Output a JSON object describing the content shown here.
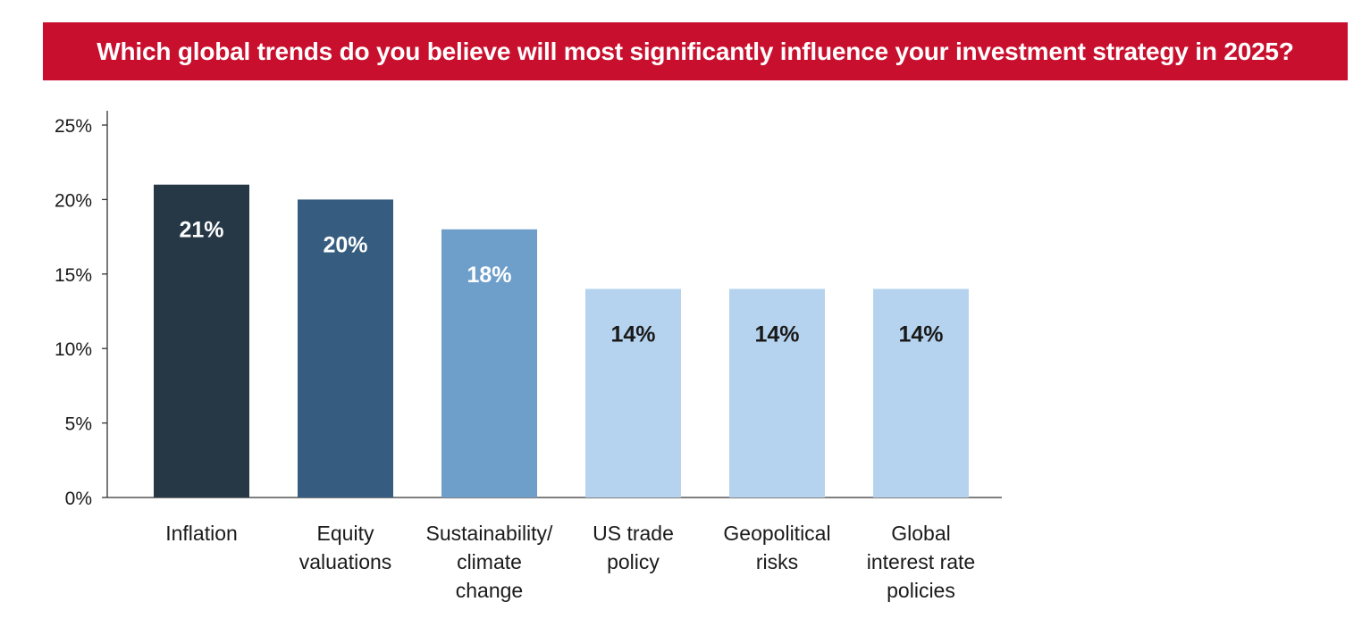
{
  "chart_data": {
    "type": "bar",
    "title": "Which global trends do you believe will most significantly influence your investment strategy in 2025?",
    "categories": [
      [
        "Inflation"
      ],
      [
        "Equity",
        "valuations"
      ],
      [
        "Sustainability/",
        "climate",
        "change"
      ],
      [
        "US trade",
        "policy"
      ],
      [
        "Geopolitical",
        "risks"
      ],
      [
        "Global",
        "interest rate",
        "policies"
      ]
    ],
    "values": [
      21,
      20,
      18,
      14,
      14,
      14
    ],
    "data_labels": [
      "21%",
      "20%",
      "18%",
      "14%",
      "14%",
      "14%"
    ],
    "bar_colors": [
      "#263846",
      "#365c80",
      "#6e9fca",
      "#b5d3ee",
      "#b5d3ee",
      "#b5d3ee"
    ],
    "label_colors": [
      "#ffffff",
      "#ffffff",
      "#ffffff",
      "#1a1a1a",
      "#1a1a1a",
      "#1a1a1a"
    ],
    "yticks": [
      0,
      5,
      10,
      15,
      20,
      25
    ],
    "ytick_labels": [
      "0%",
      "5%",
      "10%",
      "15%",
      "20%",
      "25%"
    ],
    "ylim": [
      0,
      25
    ],
    "xlabel": "",
    "ylabel": "",
    "grid": false,
    "title_color": "#c8102e"
  }
}
